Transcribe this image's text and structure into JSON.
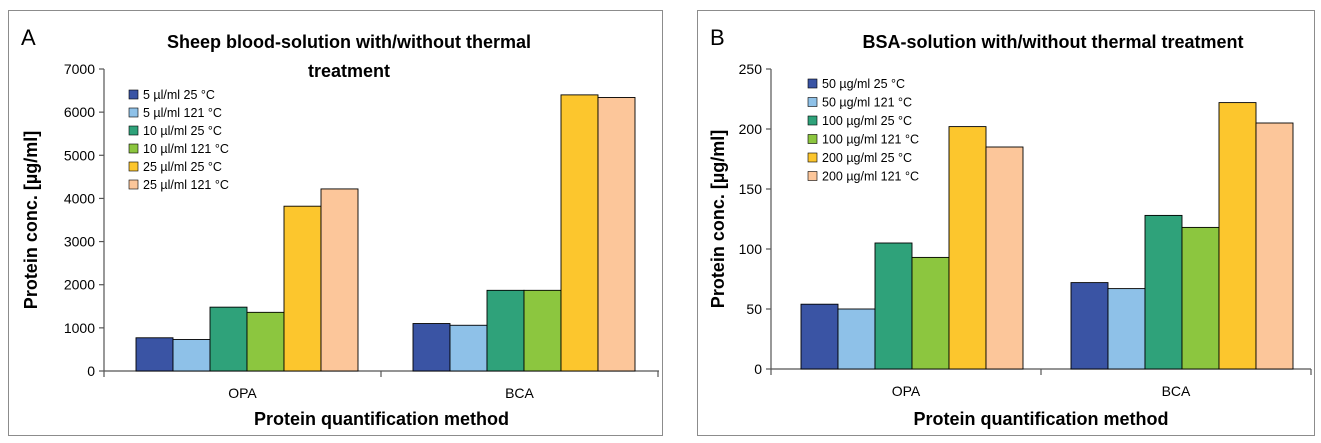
{
  "charts": [
    {
      "panel_label": "A",
      "title_line1": "Sheep blood-solution with/without thermal",
      "title_line2": "treatment",
      "chart_data": {
        "type": "bar",
        "title": "Sheep blood-solution with/without thermal treatment",
        "xlabel": "Protein quantification method",
        "ylabel": "Protein conc. [µg/ml]",
        "categories": [
          "OPA",
          "BCA"
        ],
        "ylim": [
          0,
          7000
        ],
        "yticks": [
          0,
          1000,
          2000,
          3000,
          4000,
          5000,
          6000,
          7000
        ],
        "grid": false,
        "legend": "top-left",
        "series": [
          {
            "name": "5 µl/ml 25 °C",
            "color": "#3a54a4",
            "values": [
              770,
              1100
            ]
          },
          {
            "name": "5 µl/ml 121 °C",
            "color": "#8ec1e8",
            "values": [
              730,
              1060
            ]
          },
          {
            "name": "10 µl/ml 25 °C",
            "color": "#2fa27a",
            "values": [
              1480,
              1870
            ]
          },
          {
            "name": "10 µl/ml 121 °C",
            "color": "#8cc63f",
            "values": [
              1360,
              1870
            ]
          },
          {
            "name": "25 µl/ml 25 °C",
            "color": "#fcc62d",
            "values": [
              3820,
              6400
            ]
          },
          {
            "name": "25 µl/ml 121 °C",
            "color": "#fcc69a",
            "values": [
              4220,
              6340
            ]
          }
        ]
      }
    },
    {
      "panel_label": "B",
      "title_line1": "BSA-solution with/without thermal treatment",
      "title_line2": "",
      "chart_data": {
        "type": "bar",
        "title": "BSA-solution with/without thermal treatment",
        "xlabel": "Protein quantification method",
        "ylabel": "Protein conc. [µg/ml]",
        "categories": [
          "OPA",
          "BCA"
        ],
        "ylim": [
          0,
          250
        ],
        "yticks": [
          0,
          50,
          100,
          150,
          200,
          250
        ],
        "grid": false,
        "legend": "top-left",
        "series": [
          {
            "name": "50 µg/ml 25 °C",
            "color": "#3a54a4",
            "values": [
              54,
              72
            ]
          },
          {
            "name": "50 µg/ml 121 °C",
            "color": "#8ec1e8",
            "values": [
              50,
              67
            ]
          },
          {
            "name": "100 µg/ml 25 °C",
            "color": "#2fa27a",
            "values": [
              105,
              128
            ]
          },
          {
            "name": "100 µg/ml 121 °C",
            "color": "#8cc63f",
            "values": [
              93,
              118
            ]
          },
          {
            "name": "200 µg/ml 25 °C",
            "color": "#fcc62d",
            "values": [
              202,
              222
            ]
          },
          {
            "name": "200 µg/ml 121 °C",
            "color": "#fcc69a",
            "values": [
              185,
              205
            ]
          }
        ]
      }
    }
  ]
}
